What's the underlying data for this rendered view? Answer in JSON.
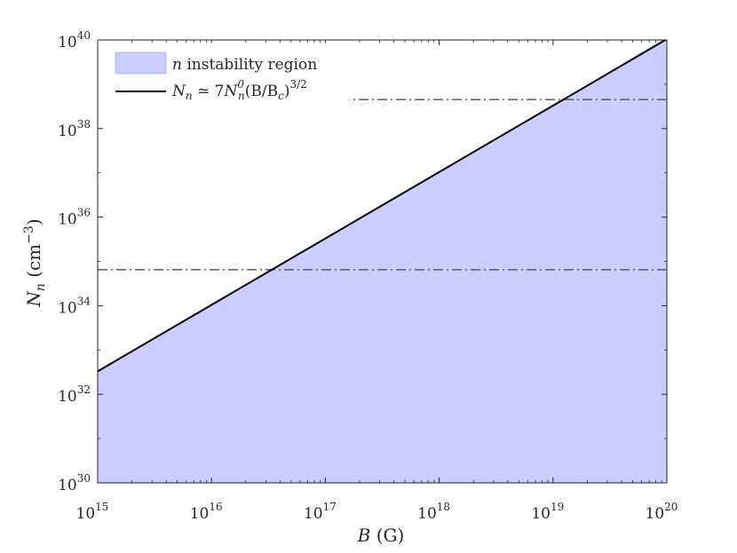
{
  "chart_data": {
    "type": "area",
    "x_scale": "log",
    "y_scale": "log",
    "xlim": [
      1000000000000000.0,
      1e+20
    ],
    "ylim": [
      1e+30,
      1e+40
    ],
    "x_tick_labels": [
      {
        "base": "10",
        "exp": "15"
      },
      {
        "base": "10",
        "exp": "16"
      },
      {
        "base": "10",
        "exp": "17"
      },
      {
        "base": "10",
        "exp": "18"
      },
      {
        "base": "10",
        "exp": "19"
      },
      {
        "base": "10",
        "exp": "20"
      }
    ],
    "y_tick_labels": [
      {
        "base": "10",
        "exp": "30"
      },
      {
        "base": "10",
        "exp": "32"
      },
      {
        "base": "10",
        "exp": "34"
      },
      {
        "base": "10",
        "exp": "36"
      },
      {
        "base": "10",
        "exp": "38"
      },
      {
        "base": "10",
        "exp": "40"
      }
    ],
    "xlabel": {
      "symbol": "B",
      "unit": " (G)"
    },
    "ylabel": {
      "symbol": "N",
      "sub": "n",
      "unit_pre": " (cm",
      "unit_exp": "−3",
      "unit_post": ")"
    },
    "grid": false,
    "legend_position": "top-left",
    "series": [
      {
        "name": "n instability region",
        "legend_parts": {
          "symbol": "n",
          "text": " instability region"
        },
        "kind": "filled-region",
        "color": "#ccccff",
        "x": [
          1000000000000000.0,
          1e+16,
          1e+17,
          1e+18,
          1e+19,
          1e+20
        ],
        "y_upper": [
          3.3e+32,
          1.04e+34,
          3.3e+35,
          1.04e+37,
          3.3e+38,
          1.2e+40
        ]
      },
      {
        "name": "N_n ≃ 7N_n^0(B/B_c)^{3/2}",
        "legend_parts": {
          "lhs": "N",
          "lhs_sub": "n",
          "op": " ≃ 7",
          "rhs": "N",
          "rhs_sub": "n",
          "rhs_sup": "0",
          "args": "(B/B",
          "args_sub": "c",
          "close": ")",
          "exp": "3/2"
        },
        "kind": "line",
        "color": "#000000",
        "x": [
          1000000000000000.0,
          1e+20
        ],
        "y": [
          3.3e+32,
          1.04e+40
        ]
      },
      {
        "name": "upper dash-dot reference",
        "kind": "hline",
        "style": "dash-dot",
        "color": "#666666",
        "y": 4.5e+38
      },
      {
        "name": "lower dash-dot reference",
        "kind": "hline",
        "style": "dash-dot",
        "color": "#666666",
        "y": 6.5e+34
      }
    ]
  }
}
